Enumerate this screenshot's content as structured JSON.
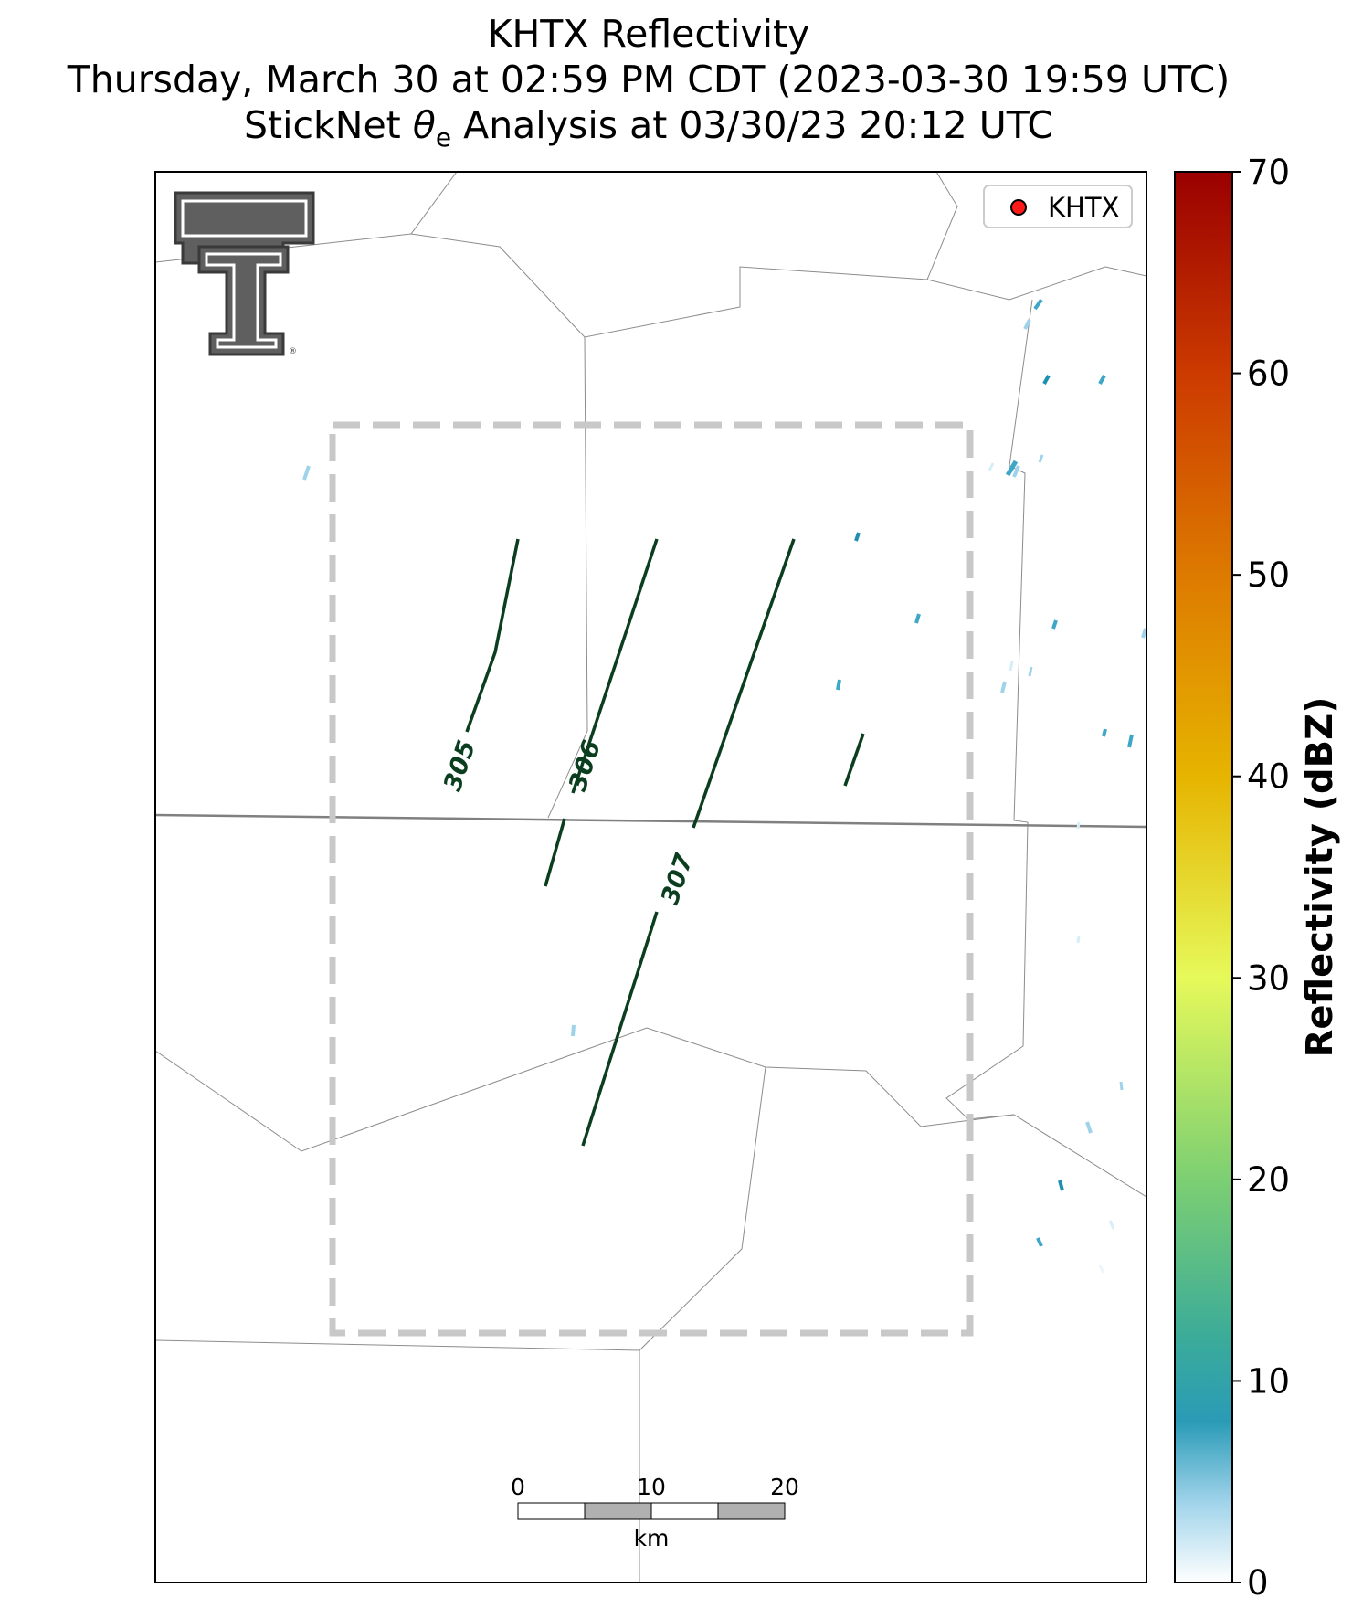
{
  "title": {
    "line1": "KHTX Reflectivity",
    "line2": "Thursday, March 30 at 02:59 PM CDT (2023-03-30 19:59 UTC)",
    "line3_prefix": "StickNet ",
    "line3_theta": "θ",
    "line3_sub": "e",
    "line3_suffix": " Analysis at 03/30/23 20:12 UTC"
  },
  "legend": {
    "label": "KHTX",
    "marker_color": "#ff1a1a"
  },
  "logo": {
    "text": "TT",
    "registered": "®"
  },
  "contours": {
    "color": "#0b3d1f",
    "labels": [
      {
        "value": "305"
      },
      {
        "value": "306"
      },
      {
        "value": "307"
      }
    ]
  },
  "scale_bar": {
    "ticks": [
      "0",
      "10",
      "20"
    ],
    "unit": "km"
  },
  "colorbar": {
    "title": "Reflectivity (dBZ)",
    "min": 0,
    "max": 70,
    "ticks": [
      "0",
      "10",
      "20",
      "30",
      "40",
      "50",
      "60",
      "70"
    ],
    "stops": [
      {
        "value": 0,
        "color": "#ffffff"
      },
      {
        "value": 4,
        "color": "#9fd3ea"
      },
      {
        "value": 8,
        "color": "#2a9bb6"
      },
      {
        "value": 12,
        "color": "#3aab9a"
      },
      {
        "value": 20,
        "color": "#7ccf72"
      },
      {
        "value": 30,
        "color": "#e6f95a"
      },
      {
        "value": 40,
        "color": "#e6b400"
      },
      {
        "value": 50,
        "color": "#dd7a00"
      },
      {
        "value": 60,
        "color": "#cc3a00"
      },
      {
        "value": 70,
        "color": "#990000"
      }
    ]
  },
  "colors": {
    "analysis_box": "#c8c8c8",
    "county_lines": "#8c8c8c",
    "state_line": "#808080",
    "echo_light": "#9fd3ea",
    "echo_mid": "#3ea6c6",
    "echo_dark": "#1e8fb0"
  }
}
